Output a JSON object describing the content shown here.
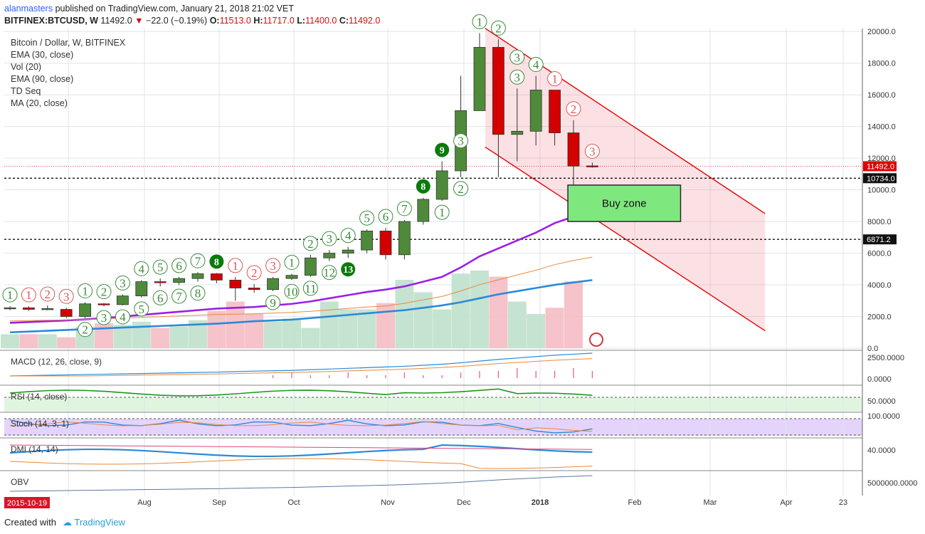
{
  "header": {
    "user": "alanmasters",
    "published": " published on TradingView.com, January 21, 2018 21:02 VET",
    "symbol": "BITFINEX:BTCUSD, W",
    "last": "11492.0",
    "change": "−22.0 (−0.19%)",
    "ohlc": {
      "o": "11513.0",
      "h": "11717.0",
      "l": "11400.0",
      "c": "11492.0"
    }
  },
  "legend": [
    "Bitcoin / Dollar, W, BITFINEX",
    "EMA (30, close)",
    "Vol (20)",
    "EMA (90, close)",
    "TD Seq",
    "MA (20, close)"
  ],
  "panes": {
    "macd": "MACD (12, 26, close, 9)",
    "rsi": "RSI (14, close)",
    "stoch": "Stoch (14, 3, 1)",
    "dmi": "DMI (14, 14)",
    "obv": "OBV"
  },
  "pane_ticks": {
    "macd": [
      "2500.0000",
      "0.0000"
    ],
    "rsi": [
      "50.0000"
    ],
    "stoch": [
      "100.0000"
    ],
    "dmi": [
      "40.0000"
    ],
    "obv": [
      "5000000.0000"
    ]
  },
  "x_labels": [
    "Aug",
    "Sep",
    "Oct",
    "Nov",
    "Dec",
    "2018",
    "Feb",
    "Mar",
    "Apr",
    "23"
  ],
  "first_date": "2015-10-19",
  "annotation": "Buy zone",
  "footer": {
    "created": "Created with",
    "brand": "TradingView"
  },
  "colors": {
    "up": "#4e8a3a",
    "down": "#d40000",
    "ema30": "#2a8ad8",
    "ema90": "#9b1fe8",
    "ma20": "#e88a3a",
    "channel": "#e60000"
  },
  "chart_data": {
    "type": "candlestick",
    "title": "Bitcoin / Dollar, W, BITFINEX",
    "interval": "W",
    "ylim": [
      0,
      21000
    ],
    "y_ticks": [
      "0.0",
      "2000.0",
      "4000.0",
      "6000.0",
      "8000.0",
      "10000.0",
      "12000.0",
      "14000.0",
      "16000.0",
      "18000.0",
      "20000.0"
    ],
    "price_labels": [
      "11492.0",
      "10734.0",
      "6871.2"
    ],
    "horizontal_levels": [
      10734.0,
      6871.2
    ],
    "candles": [
      {
        "o": 2500,
        "h": 2650,
        "l": 2400,
        "c": 2550
      },
      {
        "o": 2550,
        "h": 2650,
        "l": 2350,
        "c": 2450
      },
      {
        "o": 2450,
        "h": 2700,
        "l": 2400,
        "c": 2500
      },
      {
        "o": 2450,
        "h": 2550,
        "l": 1900,
        "c": 2000
      },
      {
        "o": 2000,
        "h": 2900,
        "l": 1900,
        "c": 2800
      },
      {
        "o": 2800,
        "h": 2850,
        "l": 2650,
        "c": 2750
      },
      {
        "o": 2750,
        "h": 3400,
        "l": 2700,
        "c": 3300
      },
      {
        "o": 3300,
        "h": 4300,
        "l": 3200,
        "c": 4200
      },
      {
        "o": 4200,
        "h": 4400,
        "l": 3900,
        "c": 4150
      },
      {
        "o": 4150,
        "h": 4500,
        "l": 4000,
        "c": 4400
      },
      {
        "o": 4400,
        "h": 4800,
        "l": 4200,
        "c": 4700
      },
      {
        "o": 4700,
        "h": 4750,
        "l": 4100,
        "c": 4300
      },
      {
        "o": 4300,
        "h": 4500,
        "l": 3000,
        "c": 3800
      },
      {
        "o": 3800,
        "h": 4050,
        "l": 3500,
        "c": 3700
      },
      {
        "o": 3700,
        "h": 4500,
        "l": 3600,
        "c": 4400
      },
      {
        "o": 4400,
        "h": 4700,
        "l": 4300,
        "c": 4600
      },
      {
        "o": 4600,
        "h": 5900,
        "l": 4500,
        "c": 5700
      },
      {
        "o": 5700,
        "h": 6200,
        "l": 5500,
        "c": 6000
      },
      {
        "o": 6000,
        "h": 6400,
        "l": 5700,
        "c": 6200
      },
      {
        "o": 6200,
        "h": 7500,
        "l": 6000,
        "c": 7400
      },
      {
        "o": 7400,
        "h": 7600,
        "l": 5600,
        "c": 5900
      },
      {
        "o": 5900,
        "h": 8100,
        "l": 5600,
        "c": 8000
      },
      {
        "o": 8000,
        "h": 9500,
        "l": 7800,
        "c": 9400
      },
      {
        "o": 9400,
        "h": 11800,
        "l": 9300,
        "c": 11200
      },
      {
        "o": 11200,
        "h": 17200,
        "l": 10800,
        "c": 15000
      },
      {
        "o": 15000,
        "h": 19900,
        "l": 15000,
        "c": 19000
      },
      {
        "o": 19000,
        "h": 19500,
        "l": 10800,
        "c": 13500
      },
      {
        "o": 13500,
        "h": 16400,
        "l": 11800,
        "c": 13700
      },
      {
        "o": 13700,
        "h": 17200,
        "l": 12800,
        "c": 16300
      },
      {
        "o": 16300,
        "h": 16300,
        "l": 12800,
        "c": 13600
      },
      {
        "o": 13600,
        "h": 14400,
        "l": 9200,
        "c": 11500
      },
      {
        "o": 11513,
        "h": 11717,
        "l": 11400,
        "c": 11492
      }
    ],
    "volume": [
      900,
      900,
      900,
      700,
      1400,
      1600,
      1500,
      1700,
      1300,
      1400,
      1800,
      2400,
      3000,
      2200,
      1700,
      1900,
      1300,
      3000,
      2500,
      2500,
      2900,
      4400,
      3600,
      2500,
      4800,
      5000,
      4600,
      3000,
      2200,
      2600,
      4300,
      0
    ],
    "ema30": [
      1000,
      1050,
      1100,
      1150,
      1200,
      1250,
      1300,
      1350,
      1400,
      1450,
      1500,
      1550,
      1620,
      1700,
      1750,
      1800,
      1900,
      2000,
      2100,
      2200,
      2300,
      2400,
      2550,
      2700,
      2900,
      3150,
      3400,
      3600,
      3800,
      4000,
      4150,
      4300
    ],
    "ema90": [
      1600,
      1650,
      1700,
      1750,
      1820,
      1900,
      2000,
      2100,
      2200,
      2300,
      2400,
      2500,
      2550,
      2600,
      2700,
      2800,
      2950,
      3150,
      3350,
      3550,
      3700,
      3900,
      4200,
      4500,
      5100,
      5800,
      6300,
      6800,
      7300,
      7900,
      8300,
      8600
    ],
    "td_numbers": [
      {
        "i": 0,
        "n": 1,
        "pos": "above",
        "clr": "green"
      },
      {
        "i": 1,
        "n": 1,
        "pos": "above",
        "clr": "red"
      },
      {
        "i": 2,
        "n": 2,
        "pos": "above",
        "clr": "red"
      },
      {
        "i": 3,
        "n": 3,
        "pos": "above",
        "clr": "red"
      },
      {
        "i": 4,
        "n": 1,
        "pos": "above",
        "clr": "green"
      },
      {
        "i": 5,
        "n": 2,
        "pos": "above",
        "clr": "green"
      },
      {
        "i": 6,
        "n": 3,
        "pos": "above",
        "clr": "green"
      },
      {
        "i": 7,
        "n": 4,
        "pos": "above",
        "clr": "green"
      },
      {
        "i": 8,
        "n": 5,
        "pos": "above",
        "clr": "green"
      },
      {
        "i": 9,
        "n": 6,
        "pos": "above",
        "clr": "green"
      },
      {
        "i": 10,
        "n": 7,
        "pos": "above",
        "clr": "green"
      },
      {
        "i": 11,
        "n": 8,
        "pos": "above",
        "clr": "darkgreen"
      },
      {
        "i": 12,
        "n": 1,
        "pos": "above",
        "clr": "red"
      },
      {
        "i": 13,
        "n": 2,
        "pos": "above",
        "clr": "red"
      },
      {
        "i": 14,
        "n": 3,
        "pos": "above",
        "clr": "red"
      },
      {
        "i": 15,
        "n": 1,
        "pos": "above",
        "clr": "green"
      },
      {
        "i": 16,
        "n": 2,
        "pos": "above",
        "clr": "green"
      },
      {
        "i": 17,
        "n": 3,
        "pos": "above",
        "clr": "green"
      },
      {
        "i": 18,
        "n": 4,
        "pos": "above",
        "clr": "green"
      },
      {
        "i": 19,
        "n": 5,
        "pos": "above",
        "clr": "green"
      },
      {
        "i": 20,
        "n": 6,
        "pos": "above",
        "clr": "green"
      },
      {
        "i": 21,
        "n": 7,
        "pos": "above",
        "clr": "green"
      },
      {
        "i": 22,
        "n": 8,
        "pos": "above",
        "clr": "darkgreen"
      },
      {
        "i": 23,
        "n": 9,
        "pos": "above",
        "clr": "darkgreen"
      },
      {
        "i": 25,
        "n": 1,
        "pos": "above",
        "clr": "green"
      },
      {
        "i": 26,
        "n": 2,
        "pos": "above",
        "clr": "green"
      },
      {
        "i": 27,
        "n": 3,
        "pos": "above",
        "clr": "green"
      },
      {
        "i": 28,
        "n": 4,
        "pos": "above",
        "clr": "green"
      },
      {
        "i": 29,
        "n": 1,
        "pos": "above",
        "clr": "red"
      },
      {
        "i": 30,
        "n": 2,
        "pos": "above",
        "clr": "red"
      },
      {
        "i": 31,
        "n": 3,
        "pos": "above",
        "clr": "red"
      },
      {
        "i": 4,
        "n": 2,
        "pos": "below",
        "clr": "green"
      },
      {
        "i": 5,
        "n": 3,
        "pos": "below",
        "clr": "green"
      },
      {
        "i": 6,
        "n": 4,
        "pos": "below",
        "clr": "green"
      },
      {
        "i": 7,
        "n": 5,
        "pos": "below",
        "clr": "green"
      },
      {
        "i": 8,
        "n": 6,
        "pos": "below",
        "clr": "green"
      },
      {
        "i": 9,
        "n": 7,
        "pos": "below",
        "clr": "green"
      },
      {
        "i": 10,
        "n": 8,
        "pos": "below",
        "clr": "green"
      },
      {
        "i": 14,
        "n": 9,
        "pos": "below",
        "clr": "green"
      },
      {
        "i": 15,
        "n": 10,
        "pos": "below",
        "clr": "green"
      },
      {
        "i": 16,
        "n": 11,
        "pos": "below",
        "clr": "green"
      },
      {
        "i": 17,
        "n": 12,
        "pos": "below",
        "clr": "green"
      },
      {
        "i": 18,
        "n": 13,
        "pos": "below",
        "clr": "darkgreen"
      },
      {
        "i": 23,
        "n": 1,
        "pos": "below",
        "clr": "green"
      },
      {
        "i": 24,
        "n": 2,
        "pos": "below",
        "clr": "green"
      },
      {
        "i": 24,
        "n": 3,
        "pos": "mid",
        "clr": "green"
      },
      {
        "i": 27,
        "n": 3,
        "pos": "upper",
        "clr": "green"
      }
    ],
    "channel": {
      "upper": [
        [
          25.3,
          20200
        ],
        [
          40.2,
          8500
        ]
      ],
      "lower": [
        [
          25.3,
          12700
        ],
        [
          40.2,
          1100
        ]
      ]
    },
    "buy_zone": {
      "x": [
        29.7,
        35.7
      ],
      "y": [
        8000,
        10300
      ]
    }
  }
}
